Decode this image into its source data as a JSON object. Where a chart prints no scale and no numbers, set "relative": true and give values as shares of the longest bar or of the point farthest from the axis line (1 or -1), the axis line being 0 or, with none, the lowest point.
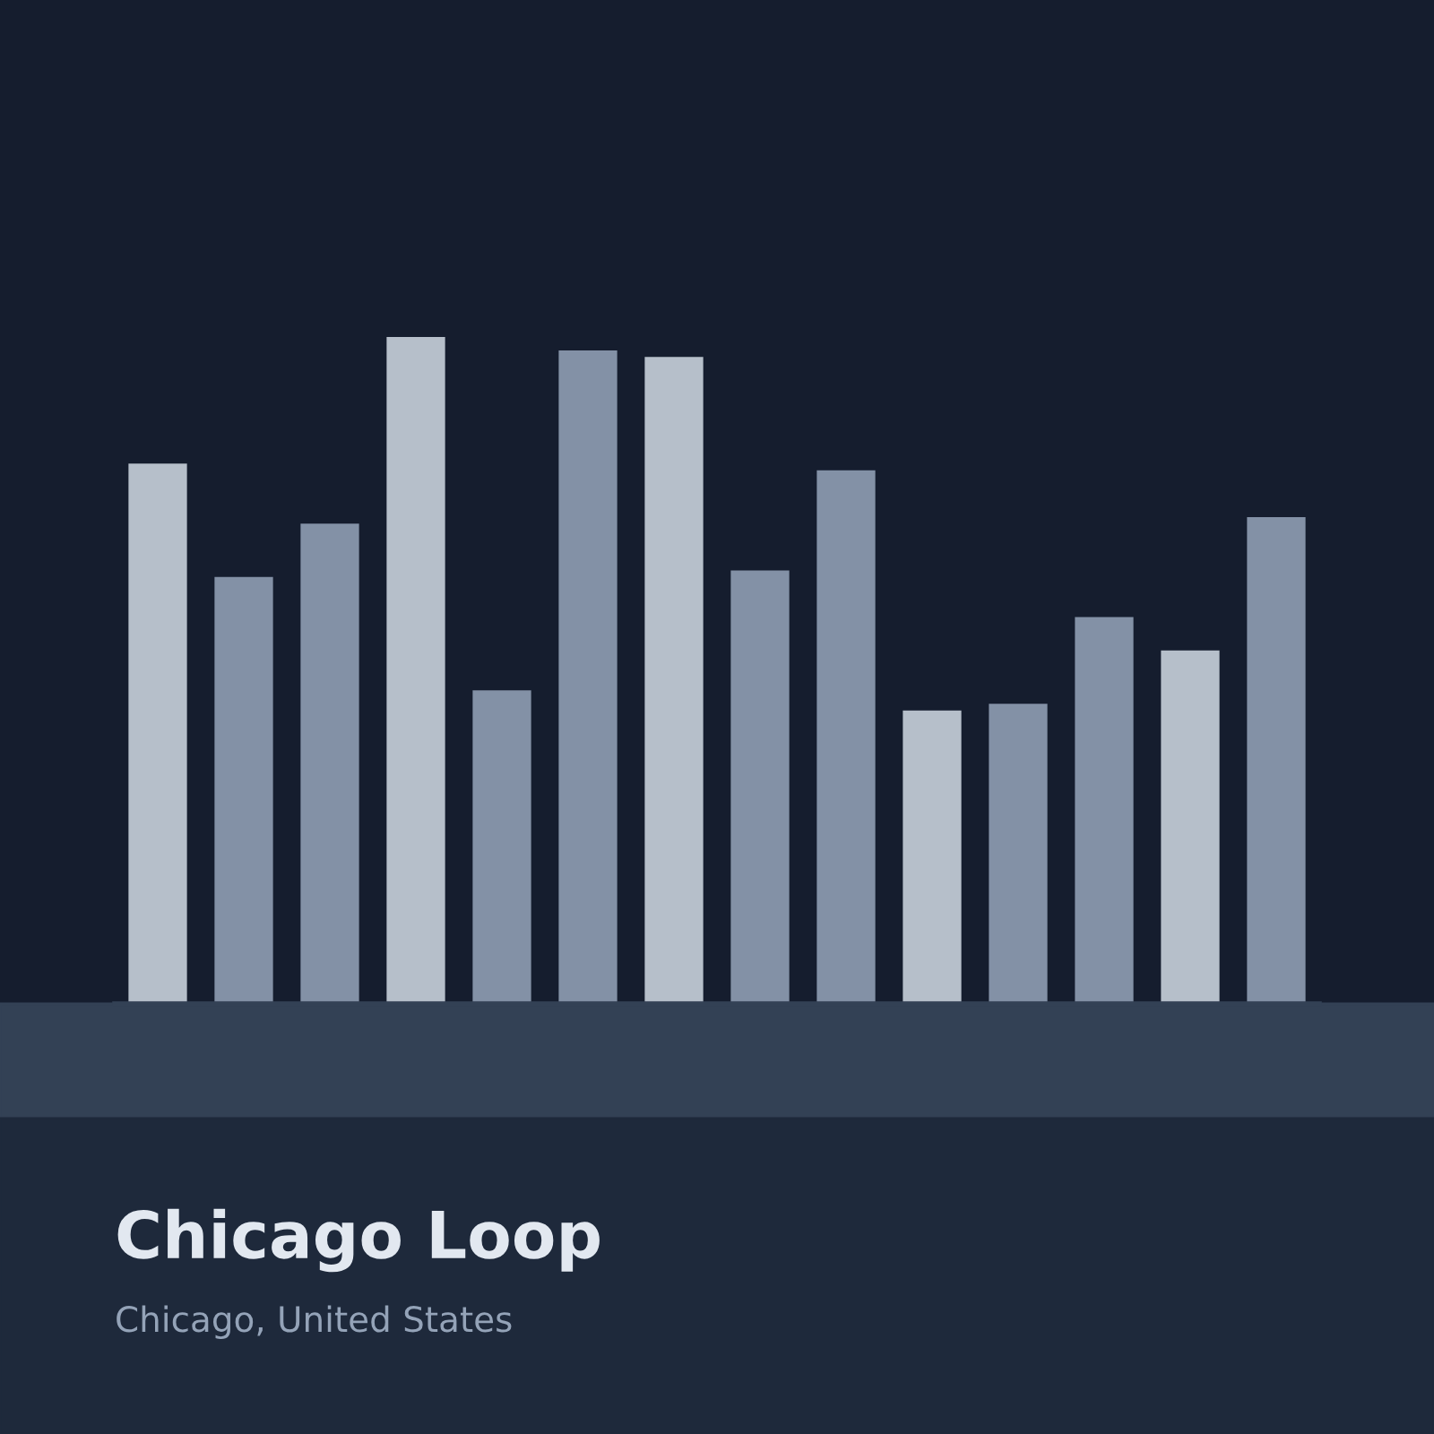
{
  "chart_data": {
    "type": "bar",
    "relative": true,
    "title": "Chicago Loop",
    "subtitle": "Chicago, United States",
    "categories": [
      null,
      null,
      null,
      null,
      null,
      null,
      null,
      null,
      null,
      null,
      null,
      null,
      null,
      null
    ],
    "values": [
      0.81,
      0.64,
      0.72,
      1,
      0.47,
      0.98,
      0.97,
      0.65,
      0.8,
      0.44,
      0.45,
      0.58,
      0.53,
      0.73
    ],
    "colors": [
      "#b6bfca",
      "#8391a6",
      "#8391a6",
      "#b6bfca",
      "#8391a6",
      "#8391a6",
      "#b6bfca",
      "#8391a6",
      "#8391a6",
      "#b6bfca",
      "#8391a6",
      "#8391a6",
      "#b6bfca",
      "#8391a6"
    ]
  }
}
